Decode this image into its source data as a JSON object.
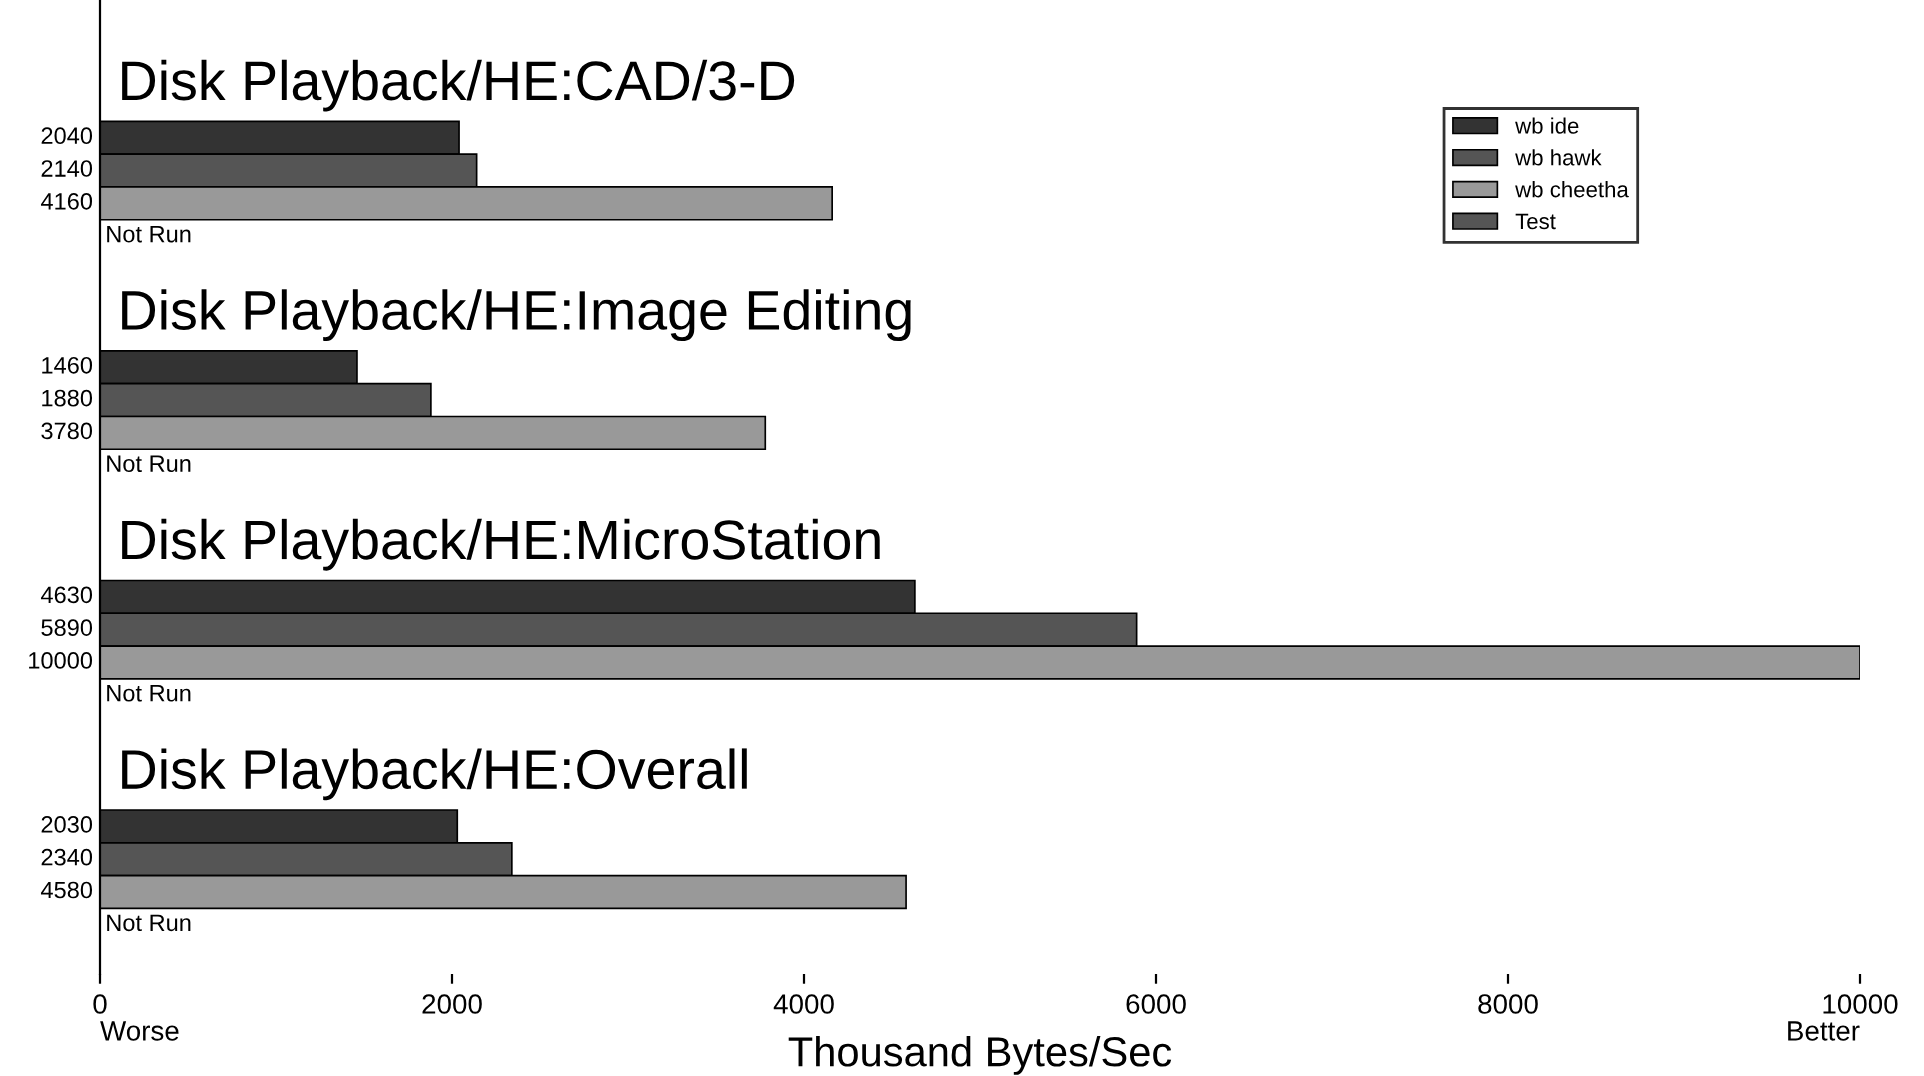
{
  "chart_data": {
    "type": "bar",
    "orientation": "horizontal",
    "categories": [
      "Disk Playback/HE:CAD/3-D",
      "Disk Playback/HE:Image Editing",
      "Disk Playback/HE:MicroStation",
      "Disk Playback/HE:Overall"
    ],
    "series": [
      {
        "name": "wb ide",
        "color": "#333333",
        "values": [
          2040,
          1460,
          4630,
          2030
        ],
        "value_labels": [
          "2040",
          "1460",
          "4630",
          "2030"
        ]
      },
      {
        "name": "wb hawk",
        "color": "#555555",
        "values": [
          2140,
          1880,
          5890,
          2340
        ],
        "value_labels": [
          "2140",
          "1880",
          "5890",
          "2340"
        ]
      },
      {
        "name": "wb cheetha",
        "color": "#999999",
        "values": [
          4160,
          3780,
          10000,
          4580
        ],
        "value_labels": [
          "4160",
          "3780",
          "10000",
          "4580"
        ]
      },
      {
        "name": "Test",
        "color": "#555555",
        "values": [
          null,
          null,
          null,
          null
        ],
        "value_labels": [
          "Not Run",
          "Not Run",
          "Not Run",
          "Not Run"
        ]
      }
    ],
    "xlabel": "Thousand Bytes/Sec",
    "xlim": [
      0,
      10000
    ],
    "xticks": [
      0,
      2000,
      4000,
      6000,
      8000,
      10000
    ],
    "annotations": [
      "Worse",
      "Better"
    ],
    "legend": "top right",
    "grid": false
  }
}
